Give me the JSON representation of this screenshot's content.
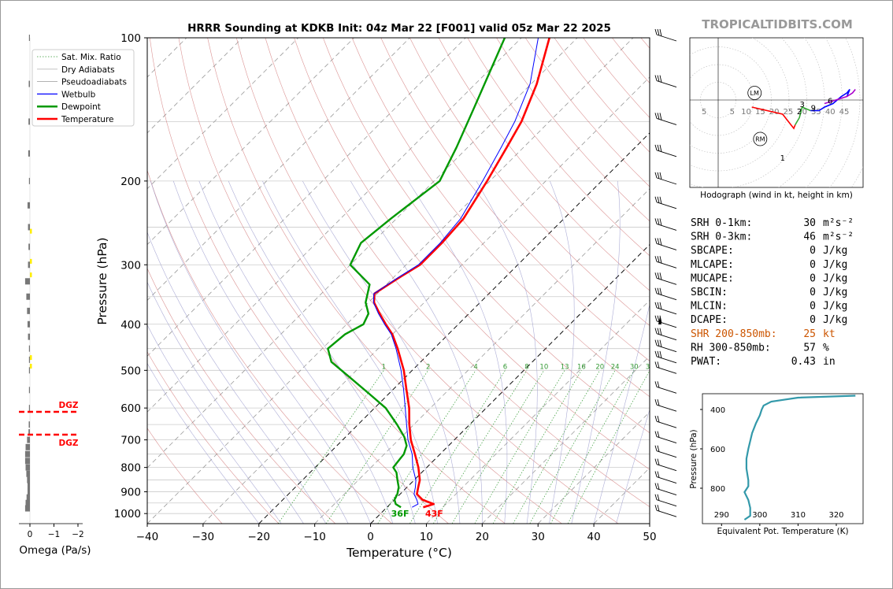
{
  "colors": {
    "temperature": "#ff0000",
    "dewpoint": "#009900",
    "wetbulb": "#0000ff",
    "dry_adiabat": "#cc6666",
    "pseudoadiabat": "#9999cc",
    "mixing_ratio": "#339933",
    "isotherm": "#999999",
    "omega_bar": "#777777",
    "omega_dgz": "#ffee00",
    "dgz": "#ff0000",
    "brand": "#999999",
    "shear": "#cc5500",
    "theta_e": "#3399aa",
    "hodo_0_3": "#ff0000",
    "hodo_3_6": "#33aa33",
    "hodo_6_9": "#0000ff",
    "hodo_9_12": "#aa00cc"
  },
  "title": "HRRR Sounding at KDKB Init: 04z Mar 22 [F001] valid 05z Mar 22 2025",
  "brand": "TROPICALTIDBITS.COM",
  "chart_data": [
    {
      "type": "line",
      "name": "skew-t",
      "xlabel": "Temperature (°C)",
      "ylabel": "Pressure (hPa)",
      "xlim": [
        -40,
        50
      ],
      "ylim": [
        1050,
        100
      ],
      "log_y": true,
      "skew": true,
      "xticks": [
        "−40",
        "−30",
        "−20",
        "−10",
        "0",
        "10",
        "20",
        "30",
        "40",
        "50"
      ],
      "yticks": [
        "100",
        "200",
        "300",
        "400",
        "500",
        "600",
        "700",
        "800",
        "900",
        "1000"
      ],
      "legend": [
        "Sat. Mix. Ratio",
        "Dry Adiabats",
        "Pseudoadiabats",
        "Wetbulb",
        "Dewpoint",
        "Temperature"
      ],
      "legend_position": "top-left",
      "mixing_ratio_labels": [
        "1",
        "2",
        "4",
        "6",
        "8",
        "10",
        "13",
        "16",
        "20",
        "24",
        "30",
        "36"
      ],
      "mixing_ratio_values": [
        1,
        2,
        4,
        6,
        8,
        10,
        13,
        16,
        20,
        24,
        30,
        36
      ],
      "surface_labels": {
        "dewpoint": "36F",
        "temperature": "43F"
      },
      "series": [
        {
          "name": "Temperature",
          "pressure": [
            970,
            955,
            935,
            910,
            880,
            850,
            800,
            750,
            700,
            650,
            600,
            550,
            500,
            450,
            420,
            400,
            380,
            360,
            345,
            320,
            300,
            270,
            240,
            200,
            170,
            150,
            125,
            100
          ],
          "values": [
            6.5,
            7.8,
            5.0,
            3.0,
            2.0,
            1.0,
            -1.5,
            -4.5,
            -7.8,
            -10.8,
            -13.8,
            -17.5,
            -21.5,
            -26.5,
            -30.0,
            -33.0,
            -36.0,
            -39.0,
            -40.5,
            -39.0,
            -37.5,
            -37.5,
            -38.0,
            -40.5,
            -43.0,
            -45.0,
            -49.0,
            -55.0
          ]
        },
        {
          "name": "Wetbulb",
          "pressure": [
            970,
            955,
            935,
            910,
            880,
            850,
            800,
            750,
            700,
            650,
            600,
            550,
            500,
            450,
            420,
            400,
            380,
            360,
            345,
            320,
            300,
            270,
            240,
            200,
            170,
            150,
            125,
            100
          ],
          "values": [
            4.5,
            5.0,
            4.0,
            2.5,
            1.5,
            0.3,
            -2.5,
            -5.0,
            -8.3,
            -11.3,
            -14.5,
            -18.0,
            -22.0,
            -26.8,
            -30.2,
            -33.2,
            -36.2,
            -39.1,
            -40.6,
            -39.2,
            -37.8,
            -37.8,
            -38.5,
            -41.3,
            -44.0,
            -46.2,
            -50.2,
            -57.0
          ]
        },
        {
          "name": "Dewpoint",
          "pressure": [
            970,
            955,
            935,
            910,
            880,
            850,
            820,
            800,
            750,
            720,
            690,
            650,
            600,
            560,
            520,
            480,
            450,
            420,
            400,
            380,
            360,
            330,
            300,
            270,
            240,
            200,
            170,
            140,
            100
          ],
          "values": [
            2.5,
            1.0,
            0.0,
            -0.5,
            -1.5,
            -3.0,
            -4.5,
            -6.0,
            -6.5,
            -7.5,
            -9.5,
            -13.0,
            -18.0,
            -23.5,
            -29.5,
            -36.0,
            -39.0,
            -38.5,
            -37.0,
            -38.0,
            -40.5,
            -43.0,
            -50.0,
            -52.0,
            -51.0,
            -49.0,
            -52.0,
            -56.0,
            -63.0
          ]
        }
      ],
      "wind_barb_pressures": [
        100,
        125,
        150,
        175,
        200,
        225,
        250,
        275,
        300,
        325,
        350,
        375,
        400,
        425,
        450,
        475,
        500,
        550,
        600,
        650,
        700,
        750,
        800,
        850,
        900,
        950,
        1000
      ]
    },
    {
      "type": "bar",
      "name": "omega",
      "xlabel": "Omega (Pa/s)",
      "xticks": [
        "0",
        "−1",
        "−2"
      ],
      "xlim": [
        0.5,
        -2.5
      ],
      "dgz_label": "DGZ",
      "dgz_pressures": [
        590,
        680
      ],
      "pressure": [
        100,
        125,
        150,
        175,
        200,
        225,
        250,
        275,
        300,
        325,
        350,
        375,
        400,
        425,
        450,
        475,
        500,
        550,
        600,
        650,
        675,
        700,
        725,
        750,
        775,
        800,
        825,
        850,
        875,
        900,
        925,
        950,
        975
      ],
      "values": [
        -0.02,
        -0.05,
        -0.06,
        -0.07,
        -0.03,
        -0.1,
        -0.08,
        -0.06,
        -0.08,
        -0.2,
        -0.15,
        -0.12,
        -0.1,
        -0.08,
        -0.03,
        -0.02,
        -0.02,
        -0.02,
        -0.02,
        -0.05,
        -0.06,
        -0.12,
        -0.18,
        -0.2,
        -0.2,
        -0.18,
        -0.15,
        -0.12,
        -0.1,
        -0.1,
        -0.14,
        -0.18,
        -0.2
      ]
    },
    {
      "type": "line",
      "name": "hodograph",
      "caption": "Hodograph (wind in kt, height in km)",
      "ring_labels": [
        "5",
        "5",
        "10",
        "15",
        "20",
        "25",
        "30",
        "35",
        "40",
        "45"
      ],
      "ring_values": [
        -5,
        5,
        10,
        15,
        20,
        25,
        30,
        35,
        40,
        45
      ],
      "height_labels": [
        "1",
        "2",
        "3",
        "6",
        "9"
      ],
      "markers": [
        "LM",
        "RM"
      ],
      "markers_uv": [
        [
          13,
          2
        ],
        [
          15,
          -11
        ]
      ],
      "series": [
        {
          "name": "0-3 km",
          "u": [
            12,
            23,
            26,
            27,
            27.5
          ],
          "v": [
            -2,
            -4,
            -7,
            -8,
            -7
          ]
        },
        {
          "name": "3-6 km",
          "u": [
            27.5,
            29,
            30,
            33
          ],
          "v": [
            -7,
            -5,
            -2,
            -3
          ]
        },
        {
          "name": "6-9 km",
          "u": [
            33,
            36,
            38,
            41,
            44,
            46,
            47,
            46
          ],
          "v": [
            -3,
            -3,
            -2,
            -1,
            1,
            2,
            3,
            1
          ]
        },
        {
          "name": "9-12 km",
          "u": [
            38,
            42,
            46,
            48,
            49
          ],
          "v": [
            -1,
            0,
            1,
            2,
            3
          ]
        }
      ],
      "height_points": [
        [
          23,
          -6
        ],
        [
          29,
          -4
        ],
        [
          30,
          -2
        ],
        [
          40,
          -1
        ],
        [
          34,
          -3
        ]
      ]
    },
    {
      "type": "line",
      "name": "theta-e",
      "xlabel": "Equivalent Pot. Temperature (K)",
      "ylabel": "Pressure (hPa)",
      "xticks": [
        "290",
        "300",
        "310",
        "320"
      ],
      "yticks": [
        "400",
        "600",
        "800"
      ],
      "xlim": [
        285,
        327
      ],
      "ylim": [
        980,
        320
      ],
      "pressure": [
        960,
        940,
        900,
        860,
        820,
        790,
        760,
        700,
        650,
        600,
        560,
        520,
        470,
        430,
        400,
        380,
        360,
        340,
        330
      ],
      "values": [
        296,
        297.5,
        297.5,
        297,
        296,
        297,
        297,
        296.5,
        296.5,
        297,
        297.5,
        298,
        299,
        300,
        300.5,
        301,
        303,
        310,
        325
      ]
    }
  ],
  "indices": [
    {
      "label": "SRH 0-1km:",
      "value": "30",
      "unit": "m²s⁻²"
    },
    {
      "label": "SRH 0-3km:",
      "value": "46",
      "unit": "m²s⁻²"
    },
    {
      "label": "SBCAPE:",
      "value": "0",
      "unit": "J/kg"
    },
    {
      "label": "MLCAPE:",
      "value": "0",
      "unit": "J/kg"
    },
    {
      "label": "MUCAPE:",
      "value": "0",
      "unit": "J/kg"
    },
    {
      "label": "SBCIN:",
      "value": "0",
      "unit": "J/kg"
    },
    {
      "label": "MLCIN:",
      "value": "0",
      "unit": "J/kg"
    },
    {
      "label": "DCAPE:",
      "value": "0",
      "unit": "J/kg"
    },
    {
      "label": "SHR 200-850mb:",
      "value": "25",
      "unit": "kt"
    },
    {
      "label": "RH 300-850mb:",
      "value": "57",
      "unit": "%"
    },
    {
      "label": "PWAT:",
      "value": "0.43",
      "unit": "in"
    }
  ]
}
